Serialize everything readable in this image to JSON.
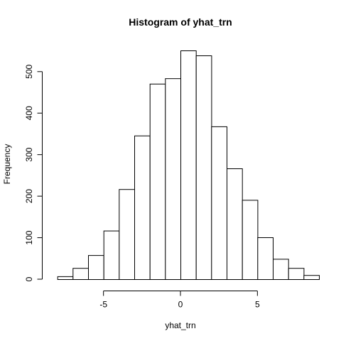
{
  "chart_data": {
    "type": "bar",
    "title": "Histogram of yhat_trn",
    "xlabel": "yhat_trn",
    "ylabel": "Frequency",
    "bin_edges": [
      -8,
      -7,
      -6,
      -5,
      -4,
      -3,
      -2,
      -1,
      0,
      1,
      2,
      3,
      4,
      5,
      6,
      7,
      8,
      9
    ],
    "values": [
      7,
      27,
      58,
      117,
      217,
      346,
      471,
      484,
      551,
      539,
      368,
      267,
      191,
      101,
      49,
      27,
      10
    ],
    "xlim": [
      -9,
      9
    ],
    "ylim": [
      0,
      551
    ],
    "x_ticks": [
      -5,
      0,
      5
    ],
    "y_ticks": [
      0,
      100,
      200,
      300,
      400,
      500
    ],
    "grid": false,
    "bar_fill": "#ffffff",
    "bar_stroke": "#000000"
  }
}
